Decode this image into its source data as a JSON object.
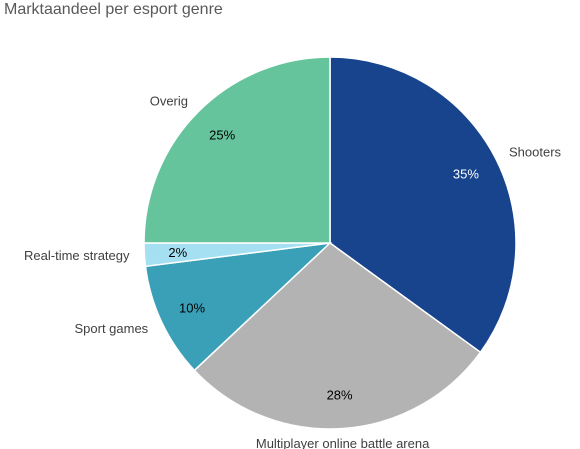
{
  "chart_data": {
    "type": "pie",
    "title": "Marktaandeel per esport genre",
    "slices": [
      {
        "label": "Shooters",
        "value": 35,
        "display": "35%",
        "color": "#17448c",
        "text_color": "#ffffff"
      },
      {
        "label": "Multiplayer online battle arena",
        "value": 28,
        "display": "28%",
        "color": "#b3b3b3",
        "text_color": "#000000"
      },
      {
        "label": "Sport games",
        "value": 10,
        "display": "10%",
        "color": "#3aa0b8",
        "text_color": "#000000"
      },
      {
        "label": "Real-time strategy",
        "value": 2,
        "display": "2%",
        "color": "#a4dff2",
        "text_color": "#000000"
      },
      {
        "label": "Overig",
        "value": 25,
        "display": "25%",
        "color": "#66c49c",
        "text_color": "#000000"
      }
    ],
    "start_angle_deg": 0,
    "direction": "clockwise",
    "legend": "none"
  }
}
